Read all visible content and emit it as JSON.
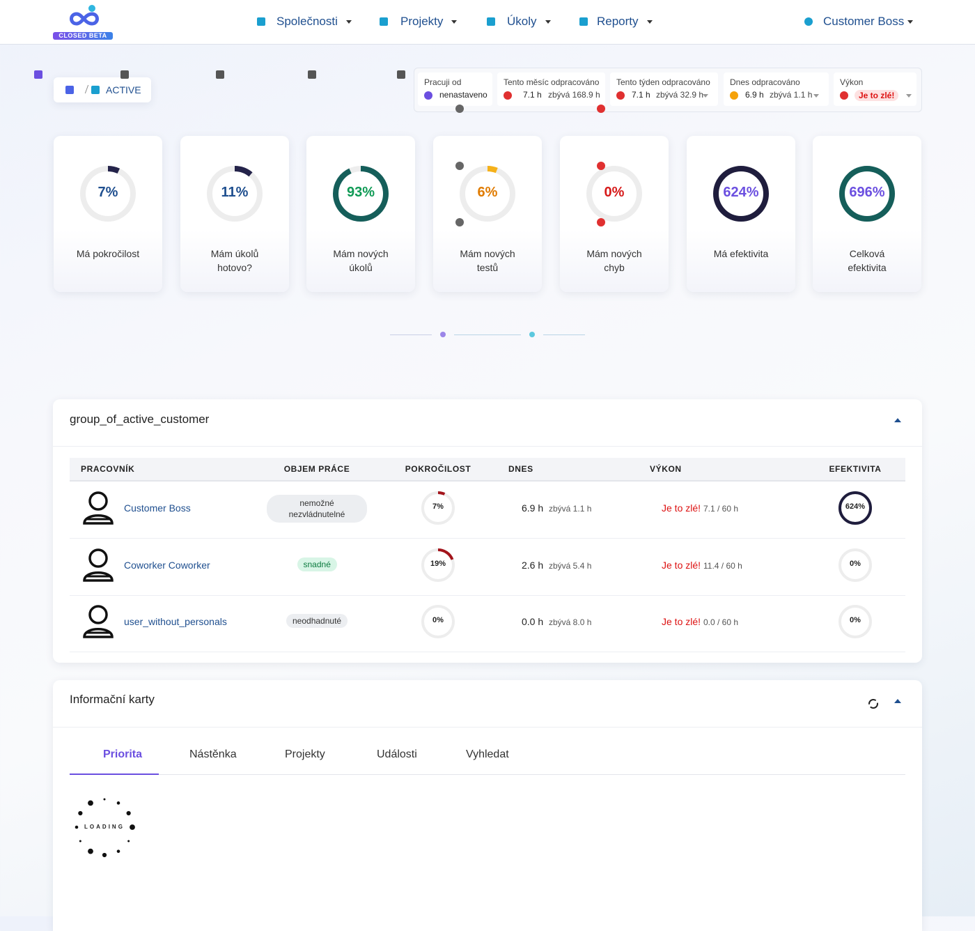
{
  "nav": {
    "badge": "CLOSED BETA",
    "items": [
      "Společnosti",
      "Projekty",
      "Úkoly",
      "Reporty"
    ],
    "user": "Customer Boss"
  },
  "breadcrumb": {
    "page": "ACTIVE"
  },
  "stats": [
    {
      "label": "Pracuji od",
      "value": "nenastaveno"
    },
    {
      "label": "Tento měsíc odpracováno",
      "value": "7.1 h",
      "remaining": "zbývá 168.9 h"
    },
    {
      "label": "Tento týden odpracováno",
      "value": "7.1 h",
      "remaining": "zbývá 32.9 h"
    },
    {
      "label": "Dnes odpracováno",
      "value": "6.9 h",
      "remaining": "zbývá 1.1 h"
    },
    {
      "label": "Výkon",
      "value": "Je to zlé!"
    }
  ],
  "kpis": [
    {
      "value": 7,
      "label": "7%",
      "caption": "Má pokročilost",
      "color": "#24234a",
      "text_color": "#1f4f8f"
    },
    {
      "value": 11,
      "label": "11%",
      "caption": "Mám úkolů hotovo?",
      "color": "#24234a",
      "text_color": "#1f4f8f"
    },
    {
      "value": 93,
      "label": "93%",
      "caption": "Mám nových úkolů",
      "color": "#155e5a",
      "text_color": "#0f9a55"
    },
    {
      "value": 6,
      "label": "6%",
      "caption": "Mám nových testů",
      "color": "#f5b11a",
      "text_color": "#e07b00"
    },
    {
      "value": 0,
      "label": "0%",
      "caption": "Mám nových chyb",
      "color": "#d61a1a",
      "text_color": "#d61a1a"
    },
    {
      "value": 624,
      "label": "624%",
      "caption": "Má efektivita",
      "color": "#1f1d3d",
      "text_color": "#6b4fe0"
    },
    {
      "value": 696,
      "label": "696%",
      "caption": "Celková efektivita",
      "color": "#155e5a",
      "text_color": "#6b4fe0"
    }
  ],
  "group_panel": {
    "title": "group_of_active_customer",
    "columns": [
      "PRACOVNÍK",
      "OBJEM PRÁCE",
      "POKROČILOST",
      "DNES",
      "VÝKON",
      "EFEKTIVITA"
    ],
    "rows": [
      {
        "name": "Customer Boss",
        "workload": "nemožné nezvládnutelné",
        "progress": {
          "value": 7,
          "label": "7%"
        },
        "today": "6.9 h",
        "remaining": "zbývá 1.1 h",
        "performance": "Je to zlé!",
        "performance_detail": "7.1 / 60 h",
        "efficiency": {
          "value": 624,
          "label": "624%"
        }
      },
      {
        "name": "Coworker Coworker",
        "workload": "snadné",
        "progress": {
          "value": 19,
          "label": "19%"
        },
        "today": "2.6 h",
        "remaining": "zbývá 5.4 h",
        "performance": "Je to zlé!",
        "performance_detail": "11.4 / 60 h",
        "efficiency": {
          "value": 0,
          "label": "0%"
        }
      },
      {
        "name": "user_without_personals",
        "workload": "neodhadnuté",
        "progress": {
          "value": 0,
          "label": "0%"
        },
        "today": "0.0 h",
        "remaining": "zbývá 8.0 h",
        "performance": "Je to zlé!",
        "performance_detail": "0.0 / 60 h",
        "efficiency": {
          "value": 0,
          "label": "0%"
        }
      }
    ]
  },
  "info_panel": {
    "title": "Informační karty",
    "tabs": [
      "Priorita",
      "Nástěnka",
      "Projekty",
      "Události",
      "Vyhledat"
    ],
    "loading": "LOADING"
  }
}
